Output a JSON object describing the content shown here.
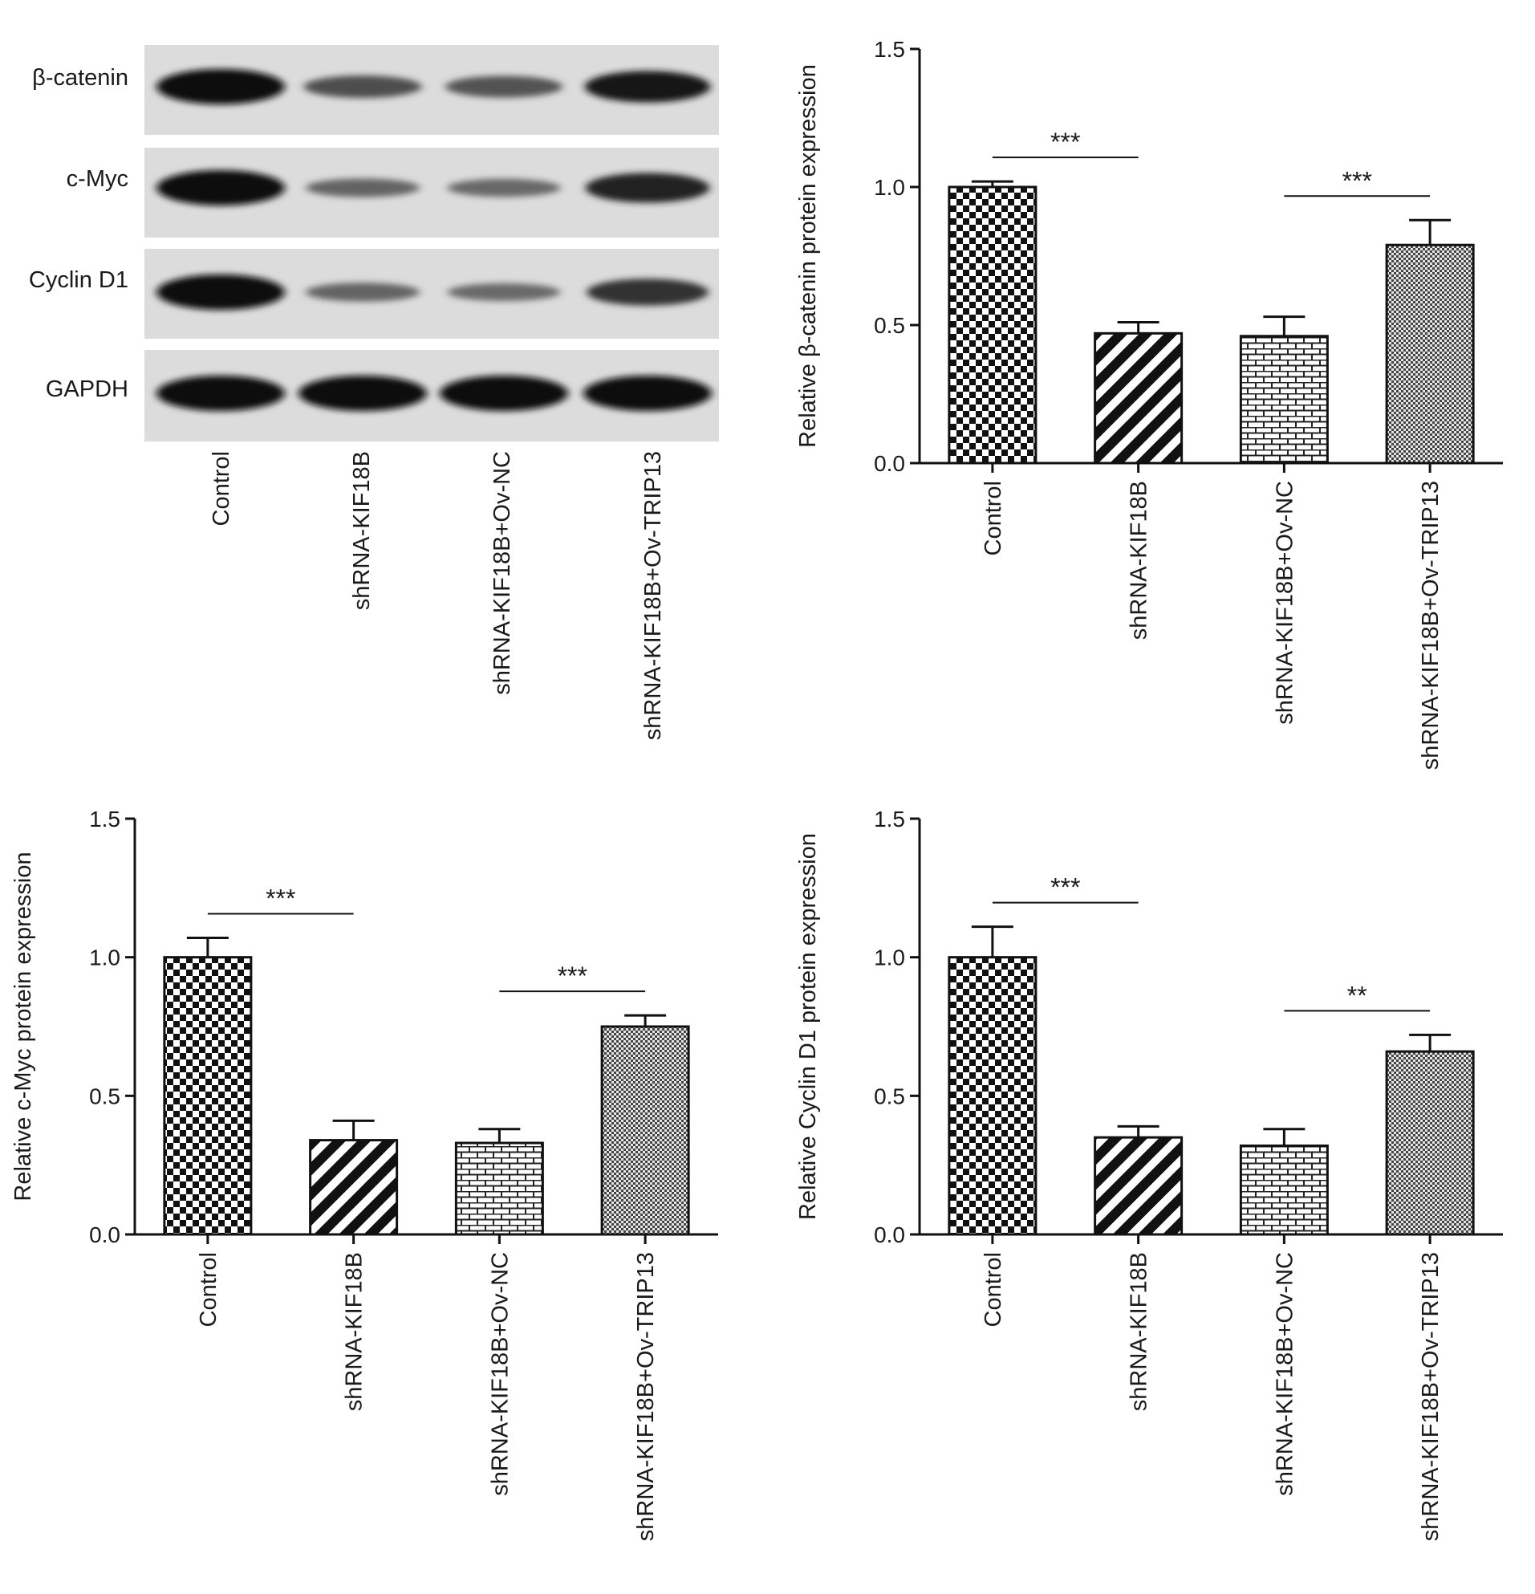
{
  "blot": {
    "rows": [
      {
        "label": "β-catenin",
        "intensity": [
          1.0,
          0.5,
          0.47,
          0.85
        ]
      },
      {
        "label": "c-Myc",
        "intensity": [
          1.0,
          0.35,
          0.33,
          0.78
        ]
      },
      {
        "label": "Cyclin D1",
        "intensity": [
          1.0,
          0.36,
          0.32,
          0.67
        ]
      },
      {
        "label": "GAPDH",
        "intensity": [
          1.0,
          1.0,
          1.0,
          1.0
        ]
      }
    ],
    "lanes": [
      "Control",
      "shRNA-KIF18B",
      "shRNA-KIF18B+Ov-NC",
      "shRNA-KIF18B+Ov-TRIP13"
    ]
  },
  "chart_data": [
    {
      "type": "bar",
      "categories": [
        "Control",
        "shRNA-KIF18B",
        "shRNA-KIF18B+Ov-NC",
        "shRNA-KIF18B+Ov-TRIP13"
      ],
      "values": [
        1.0,
        0.47,
        0.46,
        0.79
      ],
      "errors": [
        0.02,
        0.04,
        0.07,
        0.09
      ],
      "patterns": [
        "checker",
        "diagonal",
        "brick",
        "fine-checker"
      ],
      "ylabel": "Relative β-catenin protein expression",
      "ylim": [
        0,
        1.5
      ],
      "yticks": [
        "0.0",
        "0.5",
        "1.0",
        "1.5"
      ],
      "significance": [
        {
          "from": 0,
          "to": 1,
          "label": "***"
        },
        {
          "from": 2,
          "to": 3,
          "label": "***"
        }
      ]
    },
    {
      "type": "bar",
      "categories": [
        "Control",
        "shRNA-KIF18B",
        "shRNA-KIF18B+Ov-NC",
        "shRNA-KIF18B+Ov-TRIP13"
      ],
      "values": [
        1.0,
        0.34,
        0.33,
        0.75
      ],
      "errors": [
        0.07,
        0.07,
        0.05,
        0.04
      ],
      "patterns": [
        "checker",
        "diagonal",
        "brick",
        "fine-checker"
      ],
      "ylabel": "Relative c-Myc protein expression",
      "ylim": [
        0,
        1.5
      ],
      "yticks": [
        "0.0",
        "0.5",
        "1.0",
        "1.5"
      ],
      "significance": [
        {
          "from": 0,
          "to": 1,
          "label": "***"
        },
        {
          "from": 2,
          "to": 3,
          "label": "***"
        }
      ]
    },
    {
      "type": "bar",
      "categories": [
        "Control",
        "shRNA-KIF18B",
        "shRNA-KIF18B+Ov-NC",
        "shRNA-KIF18B+Ov-TRIP13"
      ],
      "values": [
        1.0,
        0.35,
        0.32,
        0.66
      ],
      "errors": [
        0.11,
        0.04,
        0.06,
        0.06
      ],
      "patterns": [
        "checker",
        "diagonal",
        "brick",
        "fine-checker"
      ],
      "ylabel": "Relative Cyclin D1 protein expression",
      "ylim": [
        0,
        1.5
      ],
      "yticks": [
        "0.0",
        "0.5",
        "1.0",
        "1.5"
      ],
      "significance": [
        {
          "from": 0,
          "to": 1,
          "label": "***"
        },
        {
          "from": 2,
          "to": 3,
          "label": "**"
        }
      ]
    }
  ]
}
